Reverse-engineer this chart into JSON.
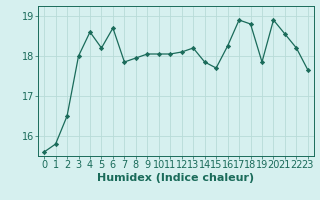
{
  "x": [
    0,
    1,
    2,
    3,
    4,
    5,
    6,
    7,
    8,
    9,
    10,
    11,
    12,
    13,
    14,
    15,
    16,
    17,
    18,
    19,
    20,
    21,
    22,
    23
  ],
  "y": [
    15.6,
    15.8,
    16.5,
    18.0,
    18.6,
    18.2,
    18.7,
    17.85,
    17.95,
    18.05,
    18.05,
    18.05,
    18.1,
    18.2,
    17.85,
    17.7,
    18.25,
    18.9,
    18.8,
    17.85,
    18.9,
    18.55,
    18.2,
    17.65
  ],
  "line_color": "#1a6b5a",
  "marker": "D",
  "marker_size": 2.2,
  "bg_color": "#d6f0ef",
  "grid_color": "#b8dbd8",
  "xlabel": "Humidex (Indice chaleur)",
  "ylim": [
    15.5,
    19.25
  ],
  "xlim": [
    -0.5,
    23.5
  ],
  "yticks": [
    16,
    17,
    18,
    19
  ],
  "xticks": [
    0,
    1,
    2,
    3,
    4,
    5,
    6,
    7,
    8,
    9,
    10,
    11,
    12,
    13,
    14,
    15,
    16,
    17,
    18,
    19,
    20,
    21,
    22,
    23
  ],
  "tick_color": "#1a6b5a",
  "label_color": "#1a6b5a",
  "xlabel_fontsize": 8,
  "tick_fontsize": 7,
  "linewidth": 0.9
}
